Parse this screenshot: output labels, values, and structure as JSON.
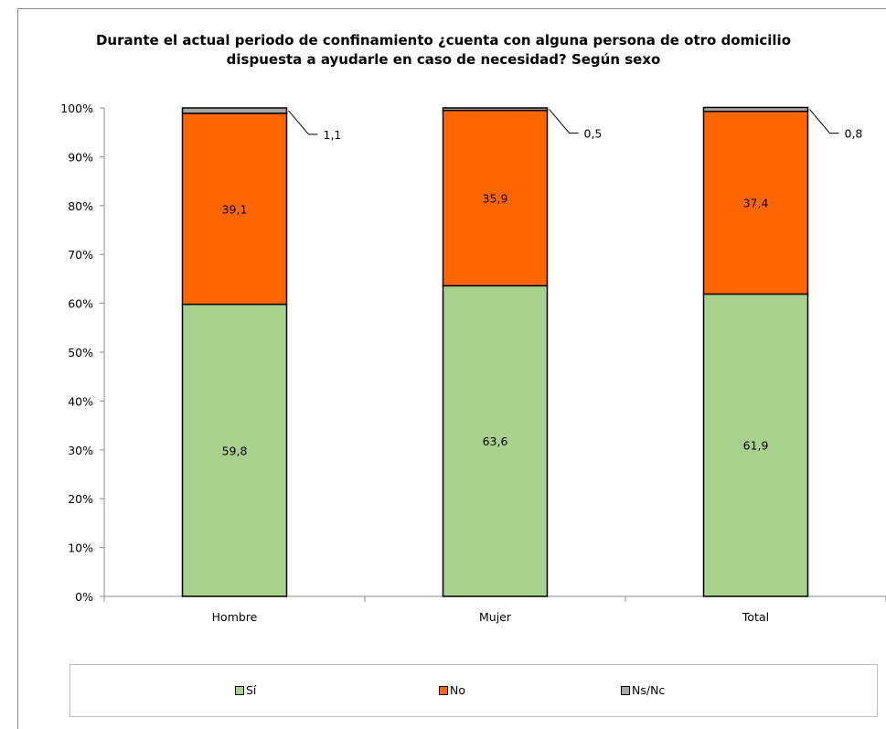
{
  "chart_data": {
    "type": "bar",
    "stacked": true,
    "title": "Durante el actual periodo de confinamiento ¿cuenta con alguna persona de otro domicilio dispuesta a ayudarle en caso de necesidad? Según sexo",
    "categories": [
      "Hombre",
      "Mujer",
      "Total"
    ],
    "series": [
      {
        "name": "Sí",
        "values": [
          59.8,
          63.6,
          61.9
        ],
        "labels": [
          "59,8",
          "63,6",
          "61,9"
        ],
        "color": "#a9d18e"
      },
      {
        "name": "No",
        "values": [
          39.1,
          35.9,
          37.4
        ],
        "labels": [
          "39,1",
          "35,9",
          "37,4"
        ],
        "color": "#ff6600"
      },
      {
        "name": "Ns/Nc",
        "values": [
          1.1,
          0.5,
          0.8
        ],
        "labels": [
          "1,1",
          "0,5",
          "0,8"
        ],
        "color": "#a6a6a6"
      }
    ],
    "ylim": [
      0,
      100
    ],
    "yticks": [
      "0%",
      "10%",
      "20%",
      "30%",
      "40%",
      "50%",
      "60%",
      "70%",
      "80%",
      "90%",
      "100%"
    ],
    "legend_position": "bottom",
    "grid": false
  }
}
